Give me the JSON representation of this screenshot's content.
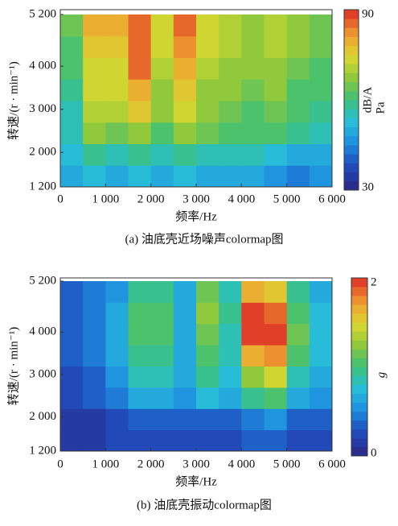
{
  "chart_data": [
    {
      "type": "heatmap",
      "caption": "(a) 油底壳近场噪声colormap图",
      "xlabel": "频率/Hz",
      "ylabel": "转速/(r · min⁻¹)",
      "colorbar_label": "dB/A",
      "colorbar_unit": "Pa",
      "xbins": [
        0,
        500,
        1000,
        1500,
        2000,
        2500,
        3000,
        3500,
        4000,
        4500,
        5000,
        5500,
        6000
      ],
      "ybins": [
        1200,
        1700,
        2200,
        2700,
        3200,
        3700,
        4200,
        4700,
        5200
      ],
      "z": [
        [
          50,
          52,
          50,
          52,
          50,
          52,
          50,
          50,
          48,
          46,
          44,
          45
        ],
        [
          52,
          58,
          56,
          58,
          55,
          58,
          55,
          56,
          54,
          52,
          50,
          50
        ],
        [
          55,
          66,
          64,
          68,
          62,
          68,
          64,
          62,
          60,
          62,
          58,
          56
        ],
        [
          56,
          70,
          70,
          76,
          66,
          74,
          66,
          64,
          62,
          64,
          60,
          58
        ],
        [
          58,
          72,
          72,
          80,
          68,
          76,
          68,
          66,
          64,
          66,
          62,
          60
        ],
        [
          60,
          74,
          74,
          84,
          70,
          80,
          70,
          68,
          66,
          68,
          64,
          62
        ],
        [
          62,
          76,
          76,
          86,
          72,
          82,
          72,
          70,
          68,
          70,
          66,
          64
        ],
        [
          64,
          78,
          78,
          86,
          72,
          84,
          72,
          70,
          68,
          70,
          66,
          64
        ]
      ],
      "xlim": [
        0,
        6000
      ],
      "xticks": [
        0,
        {
          "value": 1000,
          "label": "1 000"
        },
        {
          "value": 2000,
          "label": "2 000"
        },
        {
          "value": 3000,
          "label": "3 000"
        },
        {
          "value": 4000,
          "label": "4 000"
        },
        {
          "value": 5000,
          "label": "5 000"
        },
        {
          "value": 6000,
          "label": "6 000"
        }
      ],
      "ylim": [
        1200,
        5200
      ],
      "yticks": [
        {
          "value": 1200,
          "label": "1 200"
        },
        {
          "value": 2000,
          "label": "2 000"
        },
        {
          "value": 3000,
          "label": "3 000"
        },
        {
          "value": 4000,
          "label": "4 000"
        },
        {
          "value": 5200,
          "label": "5 200"
        }
      ],
      "clim": [
        30,
        90
      ],
      "cticks": [
        30,
        90
      ],
      "colormap": [
        "#2a2c8e",
        "#1f4fc0",
        "#1e90e0",
        "#27c0d8",
        "#3cc07a",
        "#8cc83c",
        "#d8d830",
        "#f0a030",
        "#e04028"
      ]
    },
    {
      "type": "heatmap",
      "caption": "(b) 油底壳振动colormap图",
      "xlabel": "频率/Hz",
      "ylabel": "转速/(r · min⁻¹)",
      "colorbar_label": "g",
      "xbins": [
        0,
        500,
        1000,
        1500,
        2000,
        2500,
        3000,
        3500,
        4000,
        4500,
        5000,
        5500,
        6000
      ],
      "ybins": [
        1200,
        1700,
        2200,
        2700,
        3200,
        3700,
        4200,
        4700,
        5200
      ],
      "z": [
        [
          0.1,
          0.1,
          0.2,
          0.2,
          0.2,
          0.2,
          0.2,
          0.2,
          0.3,
          0.3,
          0.2,
          0.2
        ],
        [
          0.1,
          0.1,
          0.2,
          0.3,
          0.3,
          0.3,
          0.3,
          0.3,
          0.4,
          0.5,
          0.3,
          0.3
        ],
        [
          0.2,
          0.3,
          0.4,
          0.6,
          0.6,
          0.5,
          0.7,
          0.6,
          0.9,
          1.0,
          0.6,
          0.5
        ],
        [
          0.2,
          0.3,
          0.5,
          0.8,
          0.8,
          0.6,
          0.9,
          0.7,
          1.2,
          1.4,
          0.8,
          0.6
        ],
        [
          0.3,
          0.4,
          0.6,
          0.9,
          0.9,
          0.6,
          1.0,
          0.8,
          1.6,
          1.7,
          1.0,
          0.7
        ],
        [
          0.3,
          0.4,
          0.6,
          1.0,
          1.0,
          0.6,
          1.1,
          0.8,
          1.9,
          1.9,
          1.1,
          0.7
        ],
        [
          0.3,
          0.4,
          0.6,
          1.0,
          1.0,
          0.6,
          1.2,
          0.9,
          1.9,
          1.8,
          1.0,
          0.7
        ],
        [
          0.3,
          0.4,
          0.5,
          0.9,
          0.9,
          0.6,
          1.1,
          0.8,
          1.6,
          1.5,
          0.9,
          0.6
        ]
      ],
      "xlim": [
        0,
        6000
      ],
      "xticks": [
        0,
        {
          "value": 1000,
          "label": "1 000"
        },
        {
          "value": 2000,
          "label": "2 000"
        },
        {
          "value": 3000,
          "label": "3 000"
        },
        {
          "value": 4000,
          "label": "4 000"
        },
        {
          "value": 5000,
          "label": "5 000"
        },
        {
          "value": 6000,
          "label": "6 000"
        }
      ],
      "ylim": [
        1200,
        5200
      ],
      "yticks": [
        {
          "value": 1200,
          "label": "1 200"
        },
        {
          "value": 2000,
          "label": "2 000"
        },
        {
          "value": 3000,
          "label": "3 000"
        },
        {
          "value": 4000,
          "label": "4 000"
        },
        {
          "value": 5200,
          "label": "5 200"
        }
      ],
      "clim": [
        0,
        2
      ],
      "cticks": [
        0,
        2
      ],
      "colormap": [
        "#2a2c8e",
        "#1f4fc0",
        "#1e90e0",
        "#27c0d8",
        "#3cc07a",
        "#8cc83c",
        "#d8d830",
        "#f0a030",
        "#e04028"
      ]
    }
  ]
}
